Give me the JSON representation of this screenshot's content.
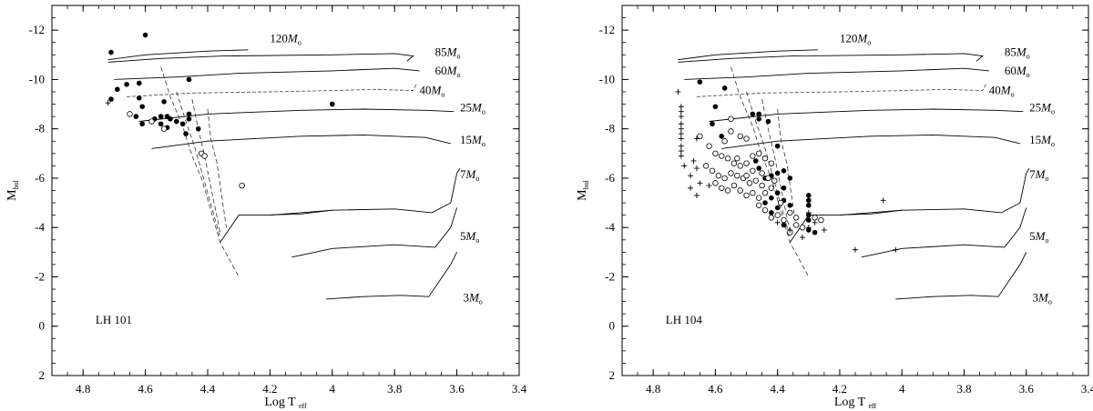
{
  "chart_data": [
    {
      "type": "scatter",
      "title": "",
      "cluster_label": "LH 101",
      "xlabel": "Log T",
      "xlabel_sub": "eff",
      "ylabel": "M",
      "ylabel_sub": "bol",
      "xlim": [
        4.9,
        3.4
      ],
      "ylim": [
        2,
        -13
      ],
      "x_ticks": [
        "4.8",
        "4.6",
        "4.4",
        "4.2",
        "4",
        "3.8",
        "3.6",
        "3.4"
      ],
      "y_ticks": [
        "-12",
        "-10",
        "-8",
        "-6",
        "-4",
        "-2",
        "0",
        "2"
      ],
      "track_labels": [
        {
          "text": "120",
          "unit": "M",
          "sub": "o",
          "x": 4.2,
          "y": -11.5
        },
        {
          "text": "85",
          "unit": "M",
          "sub": "o",
          "x": 3.67,
          "y": -10.95
        },
        {
          "text": "60",
          "unit": "M",
          "sub": "o",
          "x": 3.67,
          "y": -10.2
        },
        {
          "text": "40",
          "unit": "M",
          "sub": "o",
          "x": 3.72,
          "y": -9.4
        },
        {
          "text": "25",
          "unit": "M",
          "sub": "o",
          "x": 3.59,
          "y": -8.7
        },
        {
          "text": "15",
          "unit": "M",
          "sub": "o",
          "x": 3.59,
          "y": -7.4
        },
        {
          "text": "7",
          "unit": "M",
          "sub": "o",
          "x": 3.59,
          "y": -6.0
        },
        {
          "text": "5",
          "unit": "M",
          "sub": "o",
          "x": 3.59,
          "y": -3.5
        },
        {
          "text": "3",
          "unit": "M",
          "sub": "o",
          "x": 3.58,
          "y": -1.0
        }
      ],
      "series": [
        {
          "marker": "filled-circle",
          "points": [
            [
              4.6,
              -11.8
            ],
            [
              4.71,
              -11.1
            ],
            [
              4.71,
              -9.2
            ],
            [
              4.69,
              -9.6
            ],
            [
              4.66,
              -9.8
            ],
            [
              4.62,
              -9.85
            ],
            [
              4.62,
              -9.25
            ],
            [
              4.61,
              -8.9
            ],
            [
              4.63,
              -8.5
            ],
            [
              4.61,
              -8.2
            ],
            [
              4.57,
              -8.4
            ],
            [
              4.55,
              -8.5
            ],
            [
              4.53,
              -8.5
            ],
            [
              4.55,
              -8.2
            ],
            [
              4.53,
              -8.05
            ],
            [
              4.52,
              -8.4
            ],
            [
              4.5,
              -8.3
            ],
            [
              4.48,
              -8.2
            ],
            [
              4.46,
              -8.4
            ],
            [
              4.46,
              -8.6
            ],
            [
              4.47,
              -7.8
            ],
            [
              4.43,
              -8.0
            ],
            [
              4.46,
              -10.0
            ],
            [
              4.54,
              -9.1
            ],
            [
              4.0,
              -9.0
            ]
          ]
        },
        {
          "marker": "open-circle",
          "points": [
            [
              4.65,
              -8.6
            ],
            [
              4.58,
              -8.3
            ],
            [
              4.54,
              -8.0
            ],
            [
              4.42,
              -7.0
            ],
            [
              4.41,
              -6.9
            ],
            [
              4.29,
              -5.7
            ]
          ]
        },
        {
          "marker": "plus",
          "points": [
            [
              4.72,
              -9.05
            ]
          ]
        }
      ]
    },
    {
      "type": "scatter",
      "title": "",
      "cluster_label": "LH 104",
      "xlabel": "Log T",
      "xlabel_sub": "eff",
      "ylabel": "M",
      "ylabel_sub": "bol",
      "xlim": [
        4.9,
        3.4
      ],
      "ylim": [
        2,
        -13
      ],
      "x_ticks": [
        "4.8",
        "4.6",
        "4.4",
        "4.2",
        "4",
        "3.8",
        "3.6",
        "3.4"
      ],
      "y_ticks": [
        "-12",
        "-10",
        "-8",
        "-6",
        "-4",
        "-2",
        "0",
        "2"
      ],
      "track_labels": [
        {
          "text": "120",
          "unit": "M",
          "sub": "o",
          "x": 4.2,
          "y": -11.5
        },
        {
          "text": "85",
          "unit": "M",
          "sub": "o",
          "x": 3.67,
          "y": -10.95
        },
        {
          "text": "60",
          "unit": "M",
          "sub": "o",
          "x": 3.67,
          "y": -10.2
        },
        {
          "text": "40",
          "unit": "M",
          "sub": "o",
          "x": 3.72,
          "y": -9.4
        },
        {
          "text": "25",
          "unit": "M",
          "sub": "o",
          "x": 3.59,
          "y": -8.7
        },
        {
          "text": "15",
          "unit": "M",
          "sub": "o",
          "x": 3.59,
          "y": -7.4
        },
        {
          "text": "7",
          "unit": "M",
          "sub": "o",
          "x": 3.59,
          "y": -6.0
        },
        {
          "text": "5",
          "unit": "M",
          "sub": "o",
          "x": 3.59,
          "y": -3.5
        },
        {
          "text": "3",
          "unit": "M",
          "sub": "o",
          "x": 3.58,
          "y": -1.0
        }
      ],
      "series": [
        {
          "marker": "filled-circle",
          "points": [
            [
              4.65,
              -9.9
            ],
            [
              4.57,
              -9.65
            ],
            [
              4.6,
              -8.9
            ],
            [
              4.61,
              -8.2
            ],
            [
              4.58,
              -7.7
            ],
            [
              4.48,
              -8.6
            ],
            [
              4.46,
              -8.4
            ],
            [
              4.46,
              -8.6
            ],
            [
              4.43,
              -8.3
            ],
            [
              4.4,
              -7.3
            ],
            [
              4.47,
              -6.7
            ],
            [
              4.46,
              -6.4
            ],
            [
              4.44,
              -6.0
            ],
            [
              4.42,
              -6.1
            ],
            [
              4.4,
              -6.2
            ],
            [
              4.38,
              -6.3
            ],
            [
              4.36,
              -6.0
            ],
            [
              4.38,
              -5.6
            ],
            [
              4.4,
              -5.4
            ],
            [
              4.42,
              -5.2
            ],
            [
              4.44,
              -5.0
            ],
            [
              4.38,
              -5.1
            ],
            [
              4.36,
              -4.9
            ],
            [
              4.4,
              -4.8
            ],
            [
              4.42,
              -4.6
            ],
            [
              4.3,
              -5.3
            ],
            [
              4.3,
              -5.1
            ],
            [
              4.3,
              -4.9
            ],
            [
              4.3,
              -4.5
            ],
            [
              4.3,
              -4.3
            ],
            [
              4.3,
              -3.9
            ],
            [
              4.28,
              -3.8
            ],
            [
              4.38,
              -4.1
            ]
          ]
        },
        {
          "marker": "open-circle",
          "points": [
            [
              4.55,
              -8.4
            ],
            [
              4.55,
              -7.9
            ],
            [
              4.52,
              -7.7
            ],
            [
              4.5,
              -7.6
            ],
            [
              4.65,
              -7.7
            ],
            [
              4.62,
              -7.3
            ],
            [
              4.6,
              -7.0
            ],
            [
              4.58,
              -6.9
            ],
            [
              4.56,
              -6.8
            ],
            [
              4.54,
              -6.6
            ],
            [
              4.52,
              -6.5
            ],
            [
              4.5,
              -6.6
            ],
            [
              4.48,
              -6.9
            ],
            [
              4.46,
              -7.0
            ],
            [
              4.44,
              -6.8
            ],
            [
              4.42,
              -6.6
            ],
            [
              4.63,
              -6.5
            ],
            [
              4.61,
              -6.3
            ],
            [
              4.59,
              -6.1
            ],
            [
              4.57,
              -6.0
            ],
            [
              4.55,
              -6.2
            ],
            [
              4.53,
              -6.1
            ],
            [
              4.51,
              -6.0
            ],
            [
              4.49,
              -5.8
            ],
            [
              4.47,
              -5.9
            ],
            [
              4.45,
              -5.7
            ],
            [
              4.6,
              -5.8
            ],
            [
              4.58,
              -5.6
            ],
            [
              4.56,
              -5.5
            ],
            [
              4.54,
              -5.7
            ],
            [
              4.52,
              -5.5
            ],
            [
              4.5,
              -5.3
            ],
            [
              4.48,
              -5.4
            ],
            [
              4.46,
              -5.2
            ],
            [
              4.44,
              -5.4
            ],
            [
              4.42,
              -5.6
            ],
            [
              4.46,
              -4.9
            ],
            [
              4.44,
              -4.7
            ],
            [
              4.42,
              -4.4
            ],
            [
              4.4,
              -4.5
            ],
            [
              4.38,
              -4.3
            ],
            [
              4.36,
              -4.6
            ],
            [
              4.34,
              -4.4
            ],
            [
              4.34,
              -4.1
            ],
            [
              4.32,
              -4.0
            ],
            [
              4.28,
              -4.4
            ],
            [
              4.26,
              -4.3
            ],
            [
              4.36,
              -3.8
            ],
            [
              4.48,
              -6.3
            ],
            [
              4.5,
              -6.1
            ],
            [
              4.53,
              -6.8
            ],
            [
              4.57,
              -7.5
            ],
            [
              4.45,
              -6.2
            ],
            [
              4.43,
              -6.0
            ],
            [
              4.39,
              -5.0
            ],
            [
              4.41,
              -5.9
            ]
          ]
        },
        {
          "marker": "plus",
          "points": [
            [
              4.72,
              -9.5
            ],
            [
              4.71,
              -8.9
            ],
            [
              4.71,
              -8.7
            ],
            [
              4.71,
              -8.5
            ],
            [
              4.71,
              -8.2
            ],
            [
              4.71,
              -8.0
            ],
            [
              4.71,
              -7.8
            ],
            [
              4.71,
              -7.6
            ],
            [
              4.71,
              -7.3
            ],
            [
              4.71,
              -7.1
            ],
            [
              4.71,
              -6.9
            ],
            [
              4.66,
              -7.6
            ],
            [
              4.67,
              -6.7
            ],
            [
              4.66,
              -6.4
            ],
            [
              4.68,
              -6.1
            ],
            [
              4.7,
              -6.5
            ],
            [
              4.65,
              -5.8
            ],
            [
              4.68,
              -5.6
            ],
            [
              4.66,
              -5.3
            ],
            [
              4.62,
              -5.7
            ],
            [
              4.3,
              -4.6
            ],
            [
              4.28,
              -4.2
            ],
            [
              4.36,
              -3.9
            ],
            [
              4.32,
              -3.6
            ],
            [
              4.25,
              -3.9
            ],
            [
              4.06,
              -5.1
            ],
            [
              4.15,
              -3.1
            ],
            [
              4.02,
              -3.1
            ],
            [
              4.3,
              -4.0
            ],
            [
              4.4,
              -4.2
            ]
          ]
        }
      ]
    }
  ]
}
